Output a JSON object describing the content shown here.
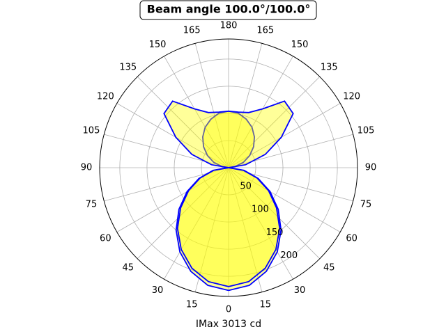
{
  "chart_data": {
    "type": "polar",
    "title": "Beam angle 100.0°/100.0°",
    "xlabel": "IMax 3013 cd",
    "theta": [
      0,
      10,
      20,
      30,
      40,
      50,
      60,
      70,
      80,
      90,
      100,
      110,
      120,
      130,
      140,
      150,
      160,
      170,
      180
    ],
    "series": [
      {
        "color": "#0000ff",
        "fill": "#ffff00",
        "values": [
          226,
          220,
          203,
          179,
          150,
          119,
          88,
          58,
          29,
          0,
          12,
          29,
          45,
          60,
          74,
          86,
          95,
          102,
          104
        ]
      },
      {
        "color": "#0000ff",
        "fill": "#ffff00",
        "values": [
          219,
          213,
          197,
          174,
          146,
          115,
          85,
          56,
          28,
          0,
          32,
          72,
          112,
          155,
          160,
          125,
          108,
          104,
          104
        ]
      }
    ],
    "rlim": [
      0,
      237
    ],
    "rticks": [
      50,
      100,
      150,
      200
    ],
    "thetaticks": [
      0,
      15,
      30,
      45,
      60,
      75,
      90,
      105,
      120,
      135,
      150,
      165,
      180
    ],
    "grid": true
  }
}
